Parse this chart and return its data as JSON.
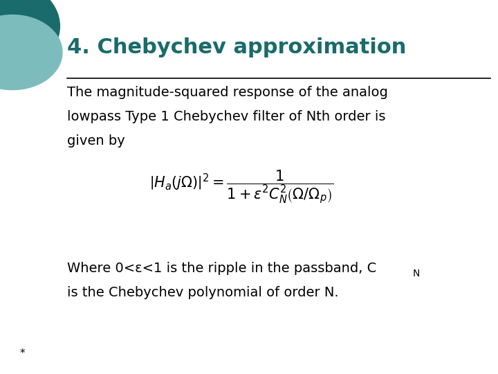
{
  "title": "4. Chebychev approximation",
  "title_color": "#1A6B6B",
  "title_fontsize": 22,
  "body_fontsize": 14,
  "body_text_1_line1": "The magnitude-squared response of the analog",
  "body_text_1_line2": "lowpass Type 1 Chebychev filter of Nth order is",
  "body_text_1_line3": "given by",
  "body_text_2_line1": "Where 0<ε<1 is the ripple in the passband, C",
  "body_text_2_sub": "N",
  "body_text_2_line2": "is the Chebychev polynomial of order N.",
  "footer_text": "*",
  "bg_color": "#FFFFFF",
  "text_color": "#000000",
  "line_color": "#000000",
  "circle_outer_color": "#1A6B6B",
  "circle_inner_color": "#7DBCBC",
  "formula": "$\\left|H_a\\left(j\\Omega\\right)\\right|^2 = \\dfrac{1}{1+\\varepsilon^2 C_N^2\\left(\\Omega/\\Omega_p\\right)}$"
}
